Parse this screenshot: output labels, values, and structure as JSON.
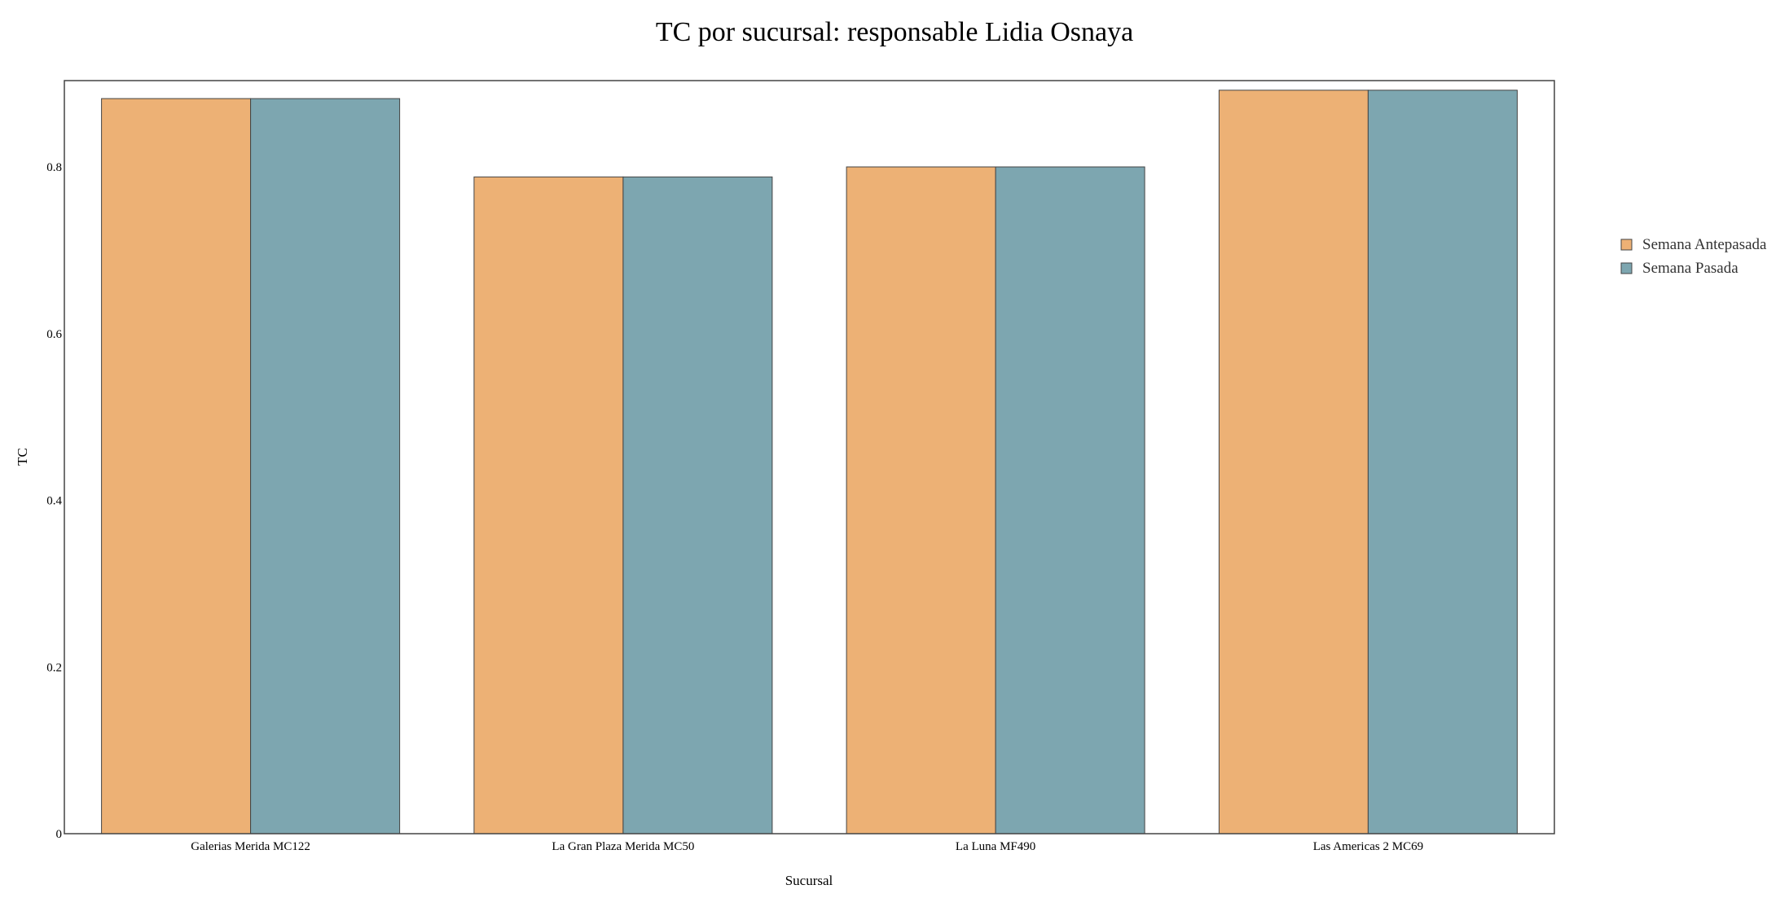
{
  "chart_data": {
    "type": "bar",
    "title": "TC por sucursal: responsable Lidia Osnaya",
    "xlabel": "Sucursal",
    "ylabel": "TC",
    "ylim": [
      0,
      0.9
    ],
    "yticks": [
      0,
      0.2,
      0.4,
      0.6,
      0.8
    ],
    "ytick_labels": [
      "0",
      "0.2",
      "0.4",
      "0.6",
      "0.8"
    ],
    "grid": false,
    "legend_position": "right",
    "categories": [
      "Galerias Merida MC122",
      "La Gran Plaza Merida MC50",
      "La Luna MF490",
      "Las Americas 2 MC69"
    ],
    "series": [
      {
        "name": "Semana Antepasada",
        "color": "#EDB175",
        "values": [
          0.882,
          0.788,
          0.8,
          0.892
        ]
      },
      {
        "name": "Semana Pasada",
        "color": "#7DA6B0",
        "values": [
          0.882,
          0.788,
          0.8,
          0.892
        ]
      }
    ]
  }
}
